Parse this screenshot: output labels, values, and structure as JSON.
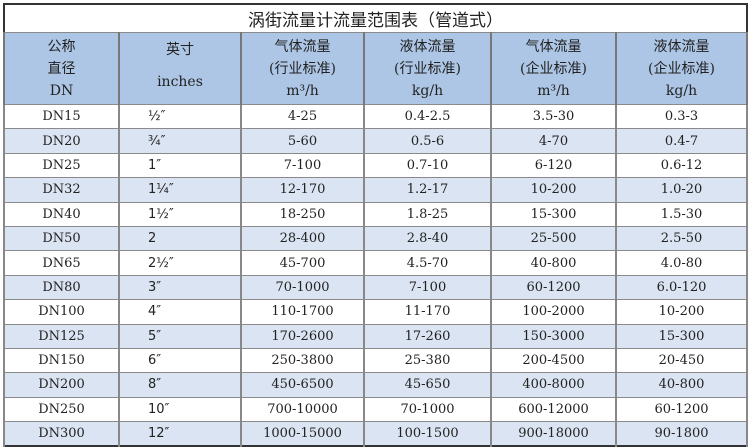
{
  "title": "涡街流量计流量范围表（管道式）",
  "columns": [
    {
      "lines": [
        "公称",
        "直径",
        "DN"
      ]
    },
    {
      "lines": [
        "英寸",
        "inches"
      ]
    },
    {
      "lines": [
        "气体流量",
        "(行业标准)",
        "m³/h"
      ]
    },
    {
      "lines": [
        "液体流量",
        "(行业标准)",
        "kg/h"
      ]
    },
    {
      "lines": [
        "气体流量",
        "(企业标准)",
        "m³/h"
      ]
    },
    {
      "lines": [
        "液体流量",
        "(企业标准)",
        "kg/h"
      ]
    }
  ],
  "rows": [
    [
      "DN15",
      "½″",
      "4-25",
      "0.4-2.5",
      "3.5-30",
      "0.3-3"
    ],
    [
      "DN20",
      "¾″",
      "5-60",
      "0.5-6",
      "4-70",
      "0.4-7"
    ],
    [
      "DN25",
      "1″",
      "7-100",
      "0.7-10",
      "6-120",
      "0.6-12"
    ],
    [
      "DN32",
      "1¼″",
      "12-170",
      "1.2-17",
      "10-200",
      "1.0-20"
    ],
    [
      "DN40",
      "1½″",
      "18-250",
      "1.8-25",
      "15-300",
      "1.5-30"
    ],
    [
      "DN50",
      "2",
      "28-400",
      "2.8-40",
      "25-500",
      "2.5-50"
    ],
    [
      "DN65",
      "2½″",
      "45-700",
      "4.5-70",
      "40-800",
      "4.0-80"
    ],
    [
      "DN80",
      "3″",
      "70-1000",
      "7-100",
      "60-1200",
      "6.0-120"
    ],
    [
      "DN100",
      "4″",
      "110-1700",
      "11-170",
      "100-2000",
      "10-200"
    ],
    [
      "DN125",
      "5″",
      "170-2600",
      "17-260",
      "150-3000",
      "15-300"
    ],
    [
      "DN150",
      "6″",
      "250-3800",
      "25-380",
      "200-4500",
      "20-450"
    ],
    [
      "DN200",
      "8″",
      "450-6500",
      "45-650",
      "400-8000",
      "40-800"
    ],
    [
      "DN250",
      "10″",
      "700-10000",
      "70-1000",
      "600-12000",
      "60-1200"
    ],
    [
      "DN300",
      "12″",
      "1000-15000",
      "100-1500",
      "900-18000",
      "90-1800"
    ]
  ],
  "colors": {
    "header_bg": "#adc6e5",
    "row_alt_bg": "#dae4f2"
  }
}
